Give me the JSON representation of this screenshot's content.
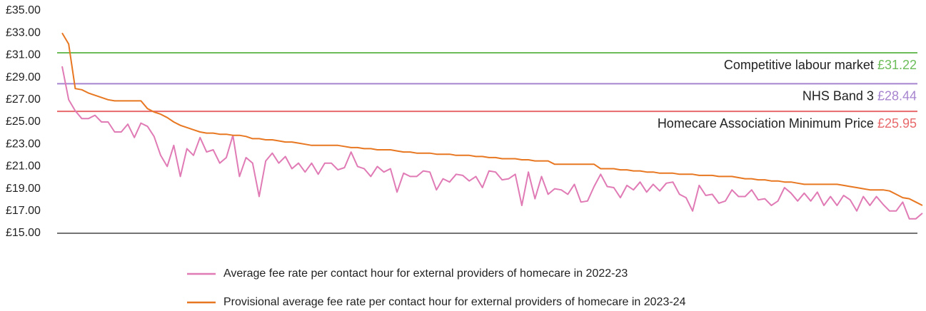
{
  "chart_data": {
    "type": "line",
    "ylim": [
      15,
      35
    ],
    "yticks": [
      {
        "value": 35,
        "label": "£35.00"
      },
      {
        "value": 33,
        "label": "£33.00"
      },
      {
        "value": 31,
        "label": "£31.00"
      },
      {
        "value": 29,
        "label": "£29.00"
      },
      {
        "value": 27,
        "label": "£27.00"
      },
      {
        "value": 25,
        "label": "£25.00"
      },
      {
        "value": 23,
        "label": "£23.00"
      },
      {
        "value": 21,
        "label": "£21.00"
      },
      {
        "value": 19,
        "label": "£19.00"
      },
      {
        "value": 17,
        "label": "£17.00"
      },
      {
        "value": 15,
        "label": "£15.00"
      }
    ],
    "categories": [
      null,
      null,
      null,
      null,
      null,
      null,
      null,
      null,
      null,
      null,
      null,
      null,
      null,
      null,
      null,
      null,
      null,
      null,
      null,
      null,
      null,
      null,
      null,
      null,
      null,
      null,
      null,
      null,
      null,
      null,
      null,
      null,
      null,
      null,
      null,
      null,
      null,
      null,
      null,
      null,
      null,
      null,
      null,
      null,
      null,
      null,
      null,
      null,
      null,
      null,
      null,
      null,
      null,
      null,
      null,
      null,
      null,
      null,
      null,
      null,
      null,
      null,
      null,
      null,
      null,
      null,
      null,
      null,
      null,
      null,
      null,
      null,
      null,
      null,
      null,
      null,
      null,
      null,
      null,
      null,
      null,
      null,
      null,
      null,
      null,
      null,
      null,
      null,
      null,
      null,
      null,
      null,
      null,
      null,
      null,
      null,
      null,
      null,
      null,
      null,
      null,
      null,
      null,
      null,
      null,
      null,
      null,
      null,
      null,
      null,
      null,
      null,
      null,
      null,
      null,
      null,
      null,
      null,
      null,
      null,
      null,
      null,
      null,
      null,
      null,
      null,
      null,
      null,
      null,
      null,
      null,
      null
    ],
    "series": [
      {
        "name": "Average fee rate per contact hour for external providers of homecare in 2022-23",
        "color": "#e07bb5",
        "values": [
          30,
          27,
          26,
          25.3,
          25.3,
          25.6,
          25,
          25,
          24.1,
          24.1,
          24.8,
          23.6,
          24.9,
          24.6,
          23.7,
          22,
          21,
          22.9,
          20.1,
          22.6,
          22,
          23.6,
          22.3,
          22.5,
          21.3,
          21.8,
          23.8,
          20.1,
          21.8,
          21.3,
          18.3,
          21.5,
          22.2,
          21.3,
          21.9,
          20.8,
          21.3,
          20.5,
          21.3,
          20.3,
          21.3,
          21.3,
          20.7,
          20.9,
          22.3,
          21,
          20.8,
          20.1,
          21,
          20.5,
          20.8,
          18.7,
          20.4,
          20.1,
          20.1,
          20.6,
          20.5,
          18.9,
          19.9,
          19.6,
          20.3,
          20.2,
          19.7,
          20.1,
          19.1,
          20.6,
          20.5,
          19.8,
          19.9,
          20.3,
          17.5,
          20.5,
          18.1,
          20.1,
          18.5,
          19,
          18.9,
          18.5,
          19.4,
          17.8,
          17.9,
          19.2,
          20.3,
          19.2,
          19.1,
          18.2,
          19.3,
          18.9,
          19.6,
          18.7,
          19.4,
          18.8,
          19.5,
          19.6,
          18.5,
          18.2,
          17,
          19.3,
          18.4,
          18.5,
          17.7,
          17.9,
          18.9,
          18.3,
          18.3,
          18.9,
          18,
          18.1,
          17.5,
          17.9,
          19.1,
          18.6,
          17.9,
          18.6,
          17.9,
          18.7,
          17.5,
          18.3,
          17.5,
          18.4,
          18,
          17,
          18.3,
          17.5,
          18.3,
          17.6,
          17,
          17,
          17.8,
          16.3,
          16.3,
          16.8
        ]
      },
      {
        "name": "Provisional average fee rate per contact hour for external providers of homecare in 2023-24",
        "color": "#e87722",
        "values": [
          33,
          32,
          28,
          27.9,
          27.6,
          27.4,
          27.2,
          27,
          26.9,
          26.9,
          26.9,
          26.9,
          26.9,
          26.2,
          25.9,
          25.7,
          25.4,
          25,
          24.7,
          24.5,
          24.3,
          24.1,
          24,
          24,
          23.9,
          23.9,
          23.8,
          23.8,
          23.7,
          23.5,
          23.5,
          23.4,
          23.4,
          23.3,
          23.2,
          23.2,
          23.1,
          23,
          22.9,
          22.9,
          22.9,
          22.9,
          22.9,
          22.8,
          22.7,
          22.7,
          22.6,
          22.6,
          22.5,
          22.5,
          22.5,
          22.4,
          22.3,
          22.3,
          22.2,
          22.2,
          22.2,
          22.1,
          22.1,
          22.1,
          22,
          22,
          22,
          21.9,
          21.9,
          21.8,
          21.8,
          21.7,
          21.7,
          21.7,
          21.6,
          21.6,
          21.5,
          21.5,
          21.5,
          21.2,
          21.2,
          21.2,
          21.2,
          21.2,
          21.2,
          21.2,
          20.8,
          20.8,
          20.8,
          20.7,
          20.7,
          20.6,
          20.6,
          20.5,
          20.5,
          20.4,
          20.4,
          20.4,
          20.3,
          20.3,
          20.3,
          20.2,
          20.2,
          20.2,
          20.1,
          20.1,
          20.1,
          20,
          19.9,
          19.9,
          19.8,
          19.8,
          19.7,
          19.7,
          19.6,
          19.6,
          19.5,
          19.4,
          19.4,
          19.4,
          19.4,
          19.4,
          19.4,
          19.3,
          19.2,
          19.1,
          19,
          18.9,
          18.9,
          18.9,
          18.8,
          18.5,
          18.2,
          18.1,
          17.8,
          17.5
        ]
      }
    ],
    "reference_lines": [
      {
        "name": "Competitive labour market",
        "value": 31.22,
        "value_label": "£31.22",
        "color": "#6cbd5a"
      },
      {
        "name": "NHS Band 3",
        "value": 28.44,
        "value_label": "£28.44",
        "color": "#a784cf"
      },
      {
        "name": "Homecare Association Minimum Price",
        "value": 25.95,
        "value_label": "£25.95",
        "color": "#e8696b"
      }
    ]
  }
}
